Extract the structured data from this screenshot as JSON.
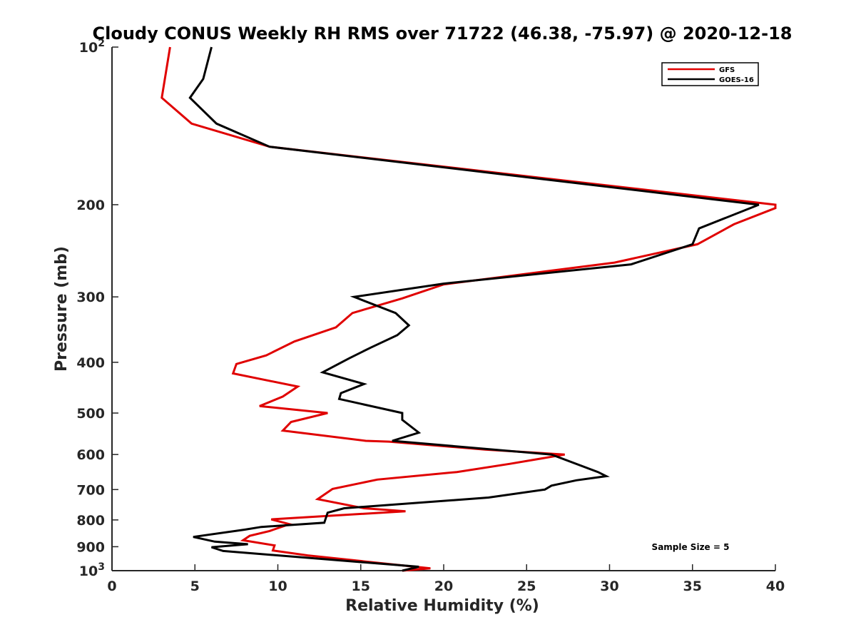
{
  "chart_data": {
    "type": "line",
    "title": "Cloudy CONUS Weekly RH RMS over 71722 (46.38, -75.97) @ 2020-12-18",
    "xlabel": "Relative Humidity (%)",
    "ylabel": "Pressure (mb)",
    "xlim": [
      0,
      40
    ],
    "ylim": [
      100,
      1000
    ],
    "yscale": "log",
    "y_reversed": true,
    "x_ticks": [
      0,
      5,
      10,
      15,
      20,
      25,
      30,
      35,
      40
    ],
    "y_ticks": [
      {
        "value": 100,
        "base": "10",
        "exp": "2"
      },
      {
        "value": 200,
        "label": "200"
      },
      {
        "value": 300,
        "label": "300"
      },
      {
        "value": 400,
        "label": "400"
      },
      {
        "value": 500,
        "label": "500"
      },
      {
        "value": 600,
        "label": "600"
      },
      {
        "value": 700,
        "label": "700"
      },
      {
        "value": 800,
        "label": "800"
      },
      {
        "value": 900,
        "label": "900"
      },
      {
        "value": 1000,
        "base": "10",
        "exp": "3"
      }
    ],
    "legend_position": "top-right",
    "annotation": "Sample Size = 5",
    "series": [
      {
        "name": "GFS",
        "color": "#e00000",
        "points": [
          [
            3.5,
            100
          ],
          [
            3.0,
            125
          ],
          [
            4.8,
            140
          ],
          [
            9.5,
            155
          ],
          [
            40.0,
            200
          ],
          [
            40.0,
            203
          ],
          [
            37.5,
            218
          ],
          [
            35.3,
            238
          ],
          [
            30.3,
            258
          ],
          [
            20.0,
            284
          ],
          [
            17.5,
            302
          ],
          [
            14.5,
            322
          ],
          [
            13.5,
            343
          ],
          [
            11.0,
            365
          ],
          [
            9.3,
            388
          ],
          [
            7.5,
            403
          ],
          [
            7.3,
            420
          ],
          [
            11.2,
            445
          ],
          [
            10.3,
            465
          ],
          [
            8.9,
            485
          ],
          [
            13.0,
            500
          ],
          [
            10.8,
            520
          ],
          [
            10.3,
            540
          ],
          [
            15.3,
            565
          ],
          [
            16.7,
            567
          ],
          [
            22.5,
            587
          ],
          [
            27.3,
            600
          ],
          [
            24.0,
            625
          ],
          [
            20.8,
            648
          ],
          [
            16.0,
            670
          ],
          [
            13.3,
            698
          ],
          [
            12.4,
            730
          ],
          [
            15.2,
            760
          ],
          [
            17.7,
            770
          ],
          [
            9.6,
            798
          ],
          [
            10.7,
            815
          ],
          [
            9.5,
            840
          ],
          [
            8.3,
            858
          ],
          [
            7.9,
            875
          ],
          [
            9.8,
            895
          ],
          [
            9.7,
            915
          ],
          [
            11.8,
            935
          ],
          [
            15.5,
            962
          ],
          [
            19.2,
            990
          ],
          [
            17.5,
            1000
          ]
        ]
      },
      {
        "name": "GOES-16",
        "color": "#000000",
        "points": [
          [
            6.0,
            100
          ],
          [
            5.5,
            115
          ],
          [
            4.7,
            125
          ],
          [
            6.3,
            140
          ],
          [
            9.5,
            155
          ],
          [
            39.0,
            200
          ],
          [
            35.4,
            222
          ],
          [
            35.0,
            238
          ],
          [
            31.3,
            260
          ],
          [
            20.0,
            283
          ],
          [
            14.6,
            300
          ],
          [
            17.1,
            322
          ],
          [
            17.9,
            340
          ],
          [
            17.2,
            355
          ],
          [
            15.6,
            375
          ],
          [
            14.3,
            393
          ],
          [
            12.7,
            418
          ],
          [
            15.2,
            440
          ],
          [
            13.8,
            458
          ],
          [
            13.7,
            470
          ],
          [
            17.5,
            500
          ],
          [
            17.5,
            515
          ],
          [
            18.5,
            545
          ],
          [
            16.9,
            565
          ],
          [
            26.5,
            600
          ],
          [
            29.3,
            648
          ],
          [
            29.8,
            660
          ],
          [
            28.0,
            672
          ],
          [
            26.5,
            688
          ],
          [
            26.1,
            700
          ],
          [
            22.7,
            725
          ],
          [
            14.0,
            760
          ],
          [
            13.0,
            775
          ],
          [
            12.8,
            810
          ],
          [
            9.0,
            825
          ],
          [
            8.0,
            835
          ],
          [
            4.9,
            862
          ],
          [
            6.2,
            880
          ],
          [
            8.2,
            890
          ],
          [
            6.0,
            902
          ],
          [
            6.7,
            917
          ],
          [
            18.5,
            983
          ],
          [
            17.5,
            1000
          ]
        ]
      }
    ]
  }
}
